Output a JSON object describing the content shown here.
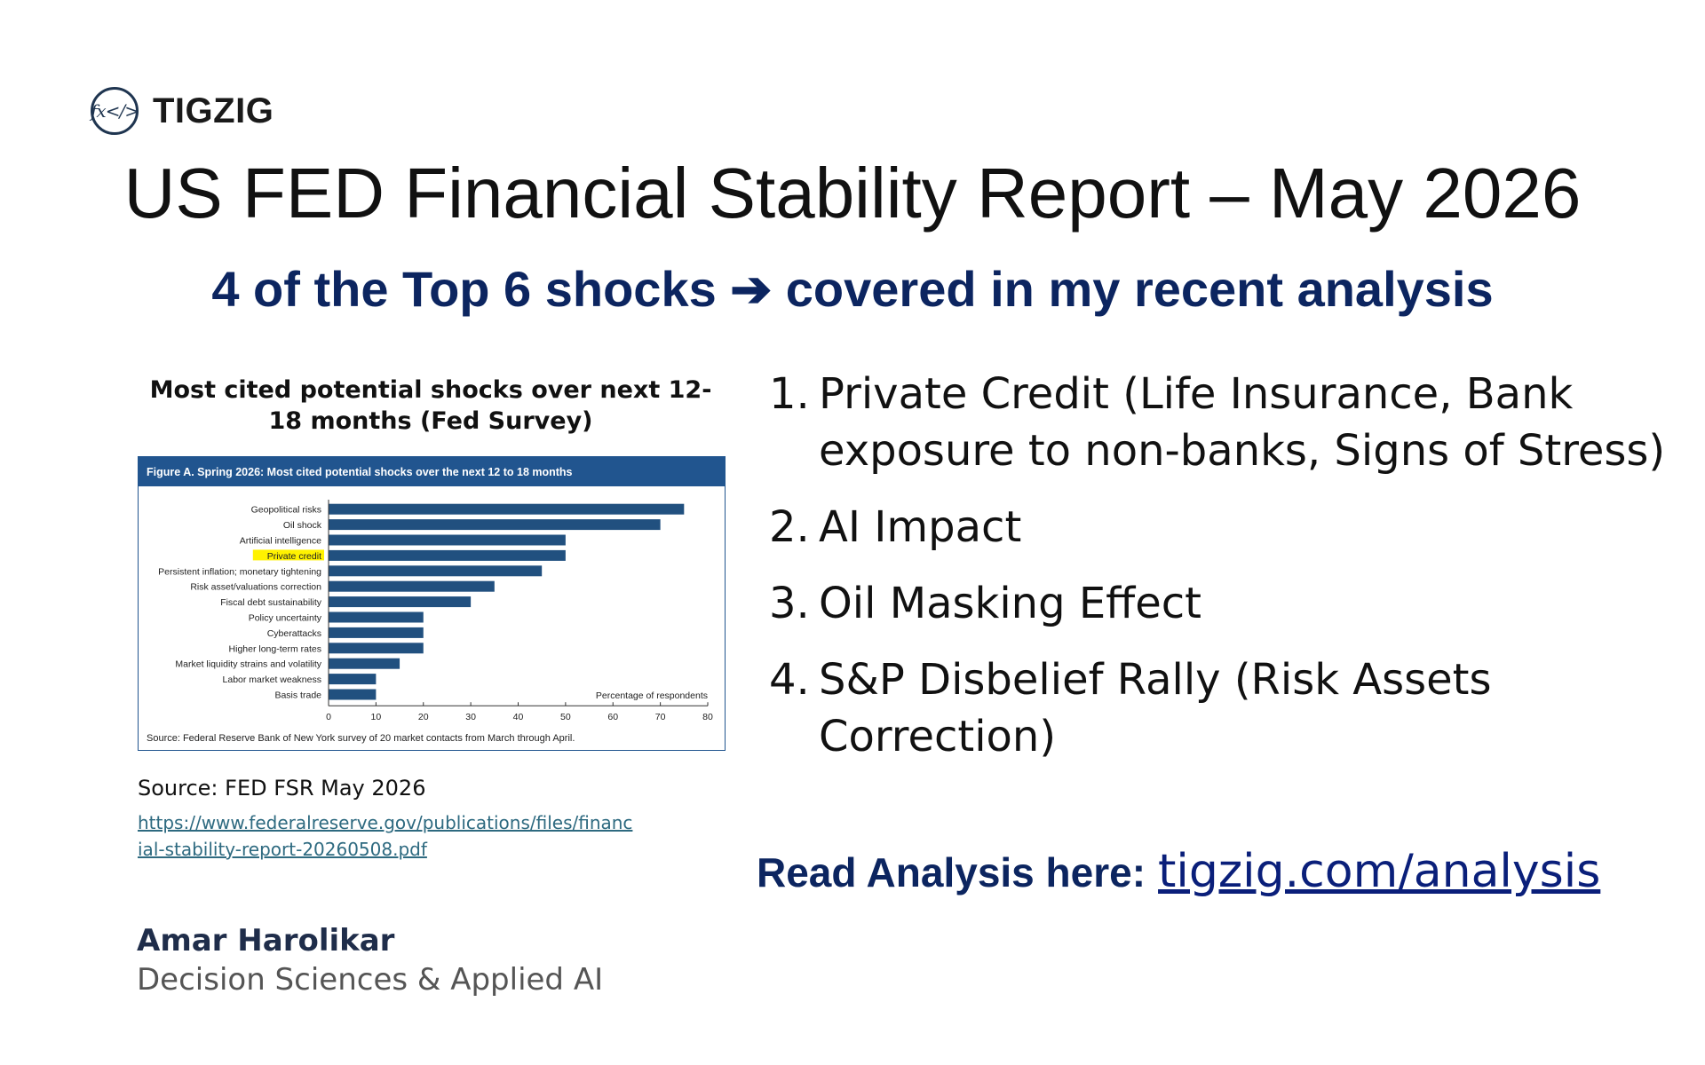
{
  "brand": {
    "name": "TIGZIG",
    "mark": "fx</>"
  },
  "title": "US FED Financial Stability Report – May 2026",
  "subtitle": "4 of the Top 6 shocks ➔ covered in my recent analysis",
  "chart_heading": "Most cited potential shocks over next 12-18 months (Fed Survey)",
  "chart_data": {
    "type": "bar",
    "orientation": "horizontal",
    "title": "Figure A. Spring 2026: Most cited potential shocks over the next 12 to 18 months",
    "categories": [
      "Geopolitical risks",
      "Oil shock",
      "Artificial intelligence",
      "Private credit",
      "Persistent inflation; monetary tightening",
      "Risk asset/valuations correction",
      "Fiscal debt sustainability",
      "Policy uncertainty",
      "Cyberattacks",
      "Higher long-term rates",
      "Market liquidity strains and volatility",
      "Labor market weakness",
      "Basis trade"
    ],
    "values": [
      75,
      70,
      50,
      50,
      45,
      35,
      30,
      20,
      20,
      20,
      15,
      10,
      10
    ],
    "highlighted_category": "Private credit",
    "xlabel": "Percentage of respondents",
    "xlim": [
      0,
      80
    ],
    "xticks": [
      "0",
      "10",
      "20",
      "30",
      "40",
      "50",
      "60",
      "70",
      "80"
    ],
    "source": "Source: Federal Reserve Bank of New York survey of 20 market contacts from March through April.",
    "colors": {
      "bar": "#21507f",
      "header": "#21558f",
      "highlight": "#fff200"
    }
  },
  "source_label": "Source: FED FSR May 2026",
  "source_url": "https://www.federalreserve.gov/publications/files/financial-stability-report-20260508.pdf",
  "shocks": [
    {
      "num": "1.",
      "text": "Private Credit (Life Insurance, Bank exposure to non-banks, Signs of Stress)"
    },
    {
      "num": "2.",
      "text": "AI Impact"
    },
    {
      "num": "3.",
      "text": "Oil Masking Effect"
    },
    {
      "num": "4.",
      "text": "S&P Disbelief Rally (Risk Assets Correction)"
    }
  ],
  "read_label": "Read Analysis here:",
  "read_link": "tigzig.com/analysis",
  "author": {
    "name": "Amar Harolikar",
    "role": "Decision Sciences & Applied AI"
  }
}
